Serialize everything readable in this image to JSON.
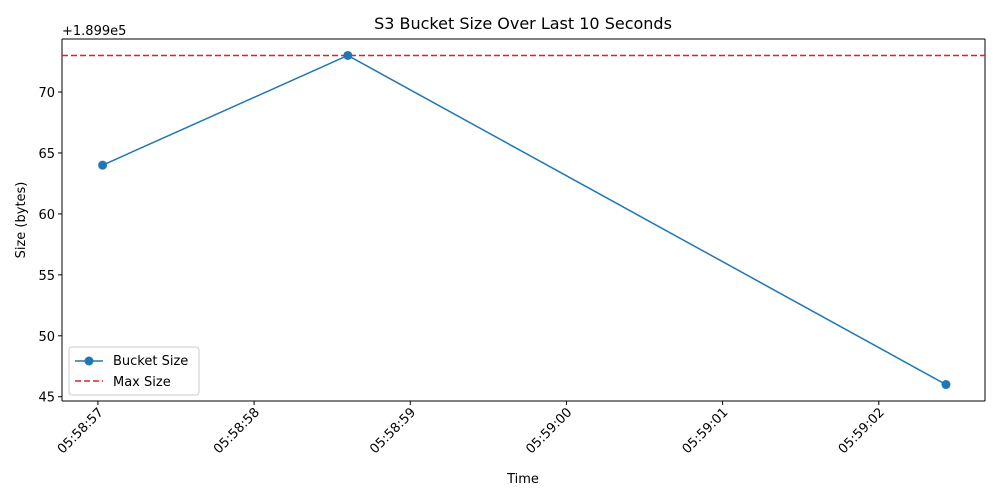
{
  "chart_data": {
    "type": "line",
    "title": "S3 Bucket Size Over Last 10 Seconds",
    "xlabel": "Time",
    "ylabel": "Size (bytes)",
    "y_offset_label": "+1.899e5",
    "x_ticks": [
      "05:58:57",
      "05:58:58",
      "05:58:59",
      "05:59:00",
      "05:59:01",
      "05:59:02"
    ],
    "y_ticks": [
      "45",
      "50",
      "55",
      "60",
      "65",
      "70"
    ],
    "xlim": [
      "05:58:56.77",
      "05:59:02.68"
    ],
    "ylim": [
      189944.65,
      189974.35
    ],
    "series": [
      {
        "name": "Bucket Size",
        "color": "#1f77b4",
        "marker": "circle",
        "x": [
          "05:58:57.03",
          "05:58:58.60",
          "05:59:02.43"
        ],
        "y": [
          189964,
          189973,
          189946
        ]
      }
    ],
    "reference_lines": [
      {
        "name": "Max Size",
        "orientation": "horizontal",
        "y": 189973,
        "color": "#d62728",
        "style": "dashed"
      }
    ],
    "legend": {
      "position": "lower-left",
      "entries": [
        "Bucket Size",
        "Max Size"
      ]
    },
    "grid": false
  }
}
